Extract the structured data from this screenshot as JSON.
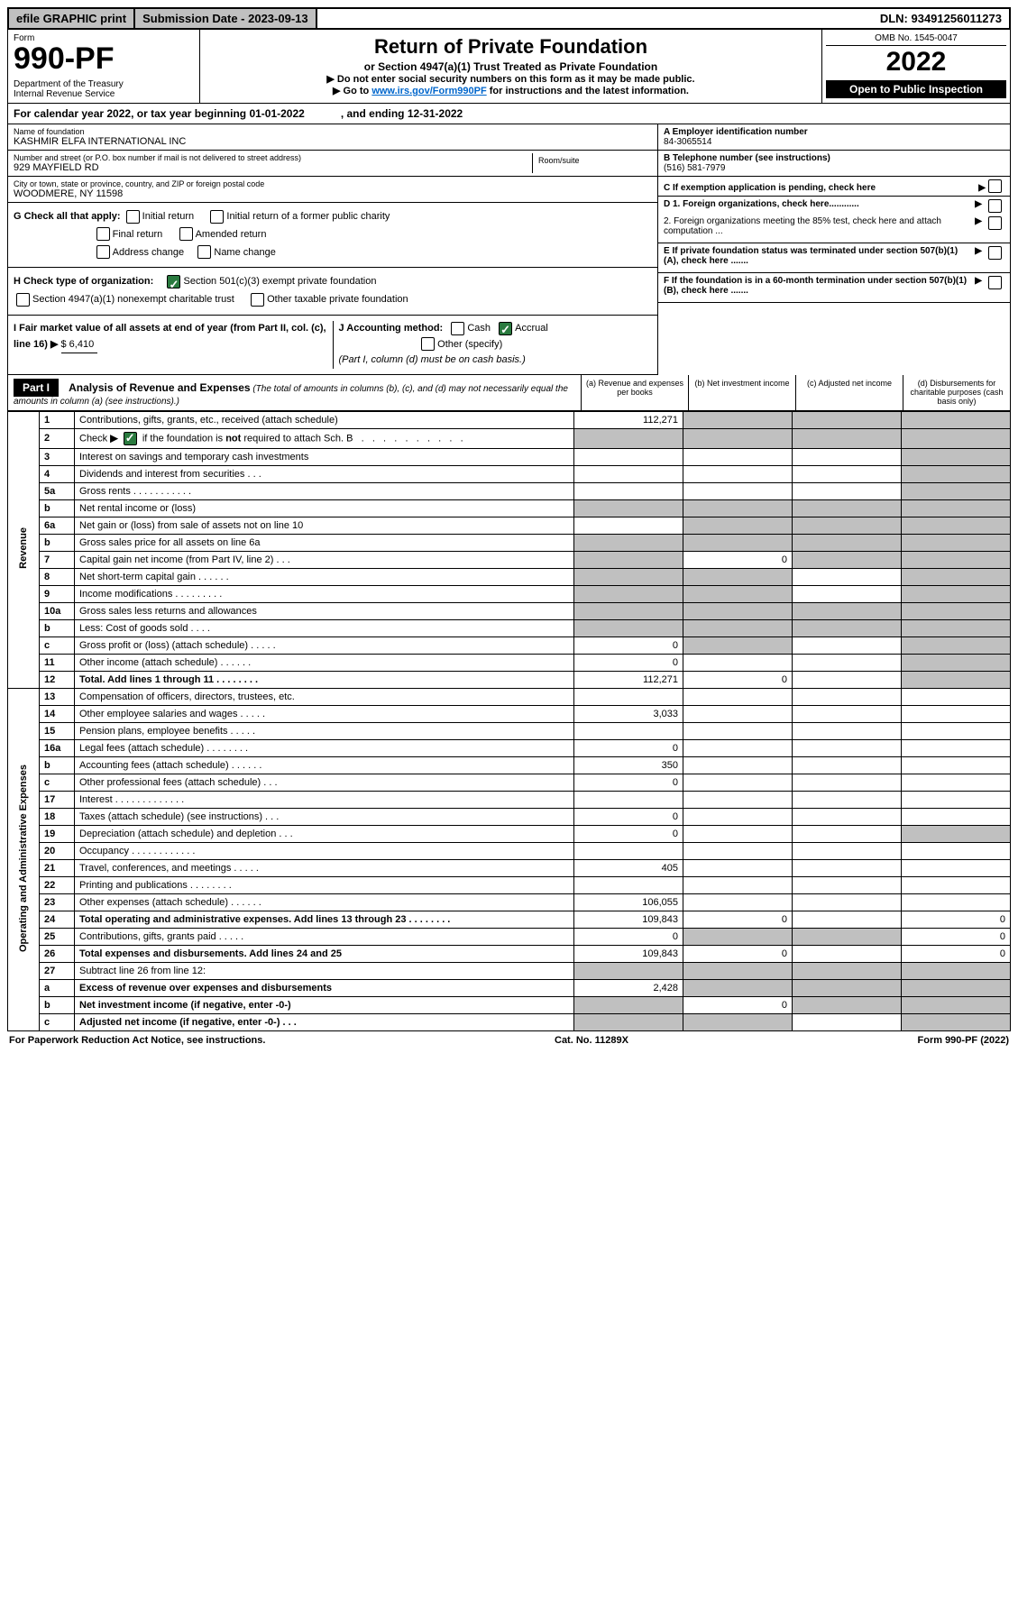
{
  "topbar": {
    "efile": "efile GRAPHIC print",
    "subdate_label": "Submission Date - ",
    "subdate": "2023-09-13",
    "dln_label": "DLN: ",
    "dln": "93491256011273"
  },
  "header": {
    "form_label": "Form",
    "form_num": "990-PF",
    "dept": "Department of the Treasury\nInternal Revenue Service",
    "title": "Return of Private Foundation",
    "subtitle": "or Section 4947(a)(1) Trust Treated as Private Foundation",
    "instr1": "▶ Do not enter social security numbers on this form as it may be made public.",
    "instr2_pre": "▶ Go to ",
    "instr2_link": "www.irs.gov/Form990PF",
    "instr2_post": " for instructions and the latest information.",
    "omb": "OMB No. 1545-0047",
    "year": "2022",
    "open": "Open to Public Inspection"
  },
  "calyear": "For calendar year 2022, or tax year beginning 01-01-2022            , and ending 12-31-2022",
  "org": {
    "name_label": "Name of foundation",
    "name": "KASHMIR ELFA INTERNATIONAL INC",
    "addr_label": "Number and street (or P.O. box number if mail is not delivered to street address)",
    "addr": "929 MAYFIELD RD",
    "room_label": "Room/suite",
    "city_label": "City or town, state or province, country, and ZIP or foreign postal code",
    "city": "WOODMERE, NY  11598",
    "ein_label": "A Employer identification number",
    "ein": "84-3065514",
    "tel_label": "B Telephone number (see instructions)",
    "tel": "(516) 581-7979",
    "c_label": "C If exemption application is pending, check here"
  },
  "checks": {
    "g_label": "G Check all that apply:",
    "g1": "Initial return",
    "g2": "Initial return of a former public charity",
    "g3": "Final return",
    "g4": "Amended return",
    "g5": "Address change",
    "g6": "Name change",
    "h_label": "H Check type of organization:",
    "h1": "Section 501(c)(3) exempt private foundation",
    "h2": "Section 4947(a)(1) nonexempt charitable trust",
    "h3": "Other taxable private foundation",
    "i_label": "I Fair market value of all assets at end of year (from Part II, col. (c), line 16) ",
    "i_arrow": "▶",
    "i_val": "$ 6,410",
    "j_label": "J Accounting method:",
    "j1": "Cash",
    "j2": "Accrual",
    "j3": "Other (specify)",
    "j_note": "(Part I, column (d) must be on cash basis.)",
    "d1": "D 1. Foreign organizations, check here............",
    "d2": "2. Foreign organizations meeting the 85% test, check here and attach computation ...",
    "e": "E  If private foundation status was terminated under section 507(b)(1)(A), check here .......",
    "f": "F  If the foundation is in a 60-month termination under section 507(b)(1)(B), check here ......."
  },
  "part1": {
    "label": "Part I",
    "title": "Analysis of Revenue and Expenses",
    "note": " (The total of amounts in columns (b), (c), and (d) may not necessarily equal the amounts in column (a) (see instructions).)",
    "col_a": "(a)   Revenue and expenses per books",
    "col_b": "(b)   Net investment income",
    "col_c": "(c)   Adjusted net income",
    "col_d": "(d)   Disbursements for charitable purposes (cash basis only)"
  },
  "sides": {
    "revenue": "Revenue",
    "expenses": "Operating and Administrative Expenses"
  },
  "rows": [
    {
      "n": "1",
      "d": "",
      "a": "112,271",
      "b": "",
      "c": "",
      "sb": true,
      "sc": true,
      "sd": true
    },
    {
      "n": "2",
      "d": "",
      "a": "",
      "b": "",
      "c": "",
      "sa": true,
      "sb": true,
      "sc": true,
      "sd": true,
      "checked": true
    },
    {
      "n": "3",
      "d": "",
      "a": "",
      "b": "",
      "c": "",
      "sd": true
    },
    {
      "n": "4",
      "d": "",
      "a": "",
      "b": "",
      "c": "",
      "sd": true
    },
    {
      "n": "5a",
      "d": "",
      "a": "",
      "b": "",
      "c": "",
      "sd": true
    },
    {
      "n": "b",
      "d": "",
      "a": "",
      "b": "",
      "c": "",
      "sa": true,
      "sb": true,
      "sc": true,
      "sd": true
    },
    {
      "n": "6a",
      "d": "",
      "a": "",
      "b": "",
      "c": "",
      "sb": true,
      "sc": true,
      "sd": true
    },
    {
      "n": "b",
      "d": "",
      "a": "",
      "b": "",
      "c": "",
      "sa": true,
      "sb": true,
      "sc": true,
      "sd": true
    },
    {
      "n": "7",
      "d": "",
      "a": "",
      "b": "0",
      "c": "",
      "sa": true,
      "sc": true,
      "sd": true
    },
    {
      "n": "8",
      "d": "",
      "a": "",
      "b": "",
      "c": "",
      "sa": true,
      "sb": true,
      "sd": true
    },
    {
      "n": "9",
      "d": "",
      "a": "",
      "b": "",
      "c": "",
      "sa": true,
      "sb": true,
      "sd": true
    },
    {
      "n": "10a",
      "d": "",
      "a": "",
      "b": "",
      "c": "",
      "sa": true,
      "sb": true,
      "sc": true,
      "sd": true
    },
    {
      "n": "b",
      "d": "",
      "a": "",
      "b": "",
      "c": "",
      "sa": true,
      "sb": true,
      "sc": true,
      "sd": true
    },
    {
      "n": "c",
      "d": "",
      "a": "0",
      "b": "",
      "c": "",
      "sb": true,
      "sd": true
    },
    {
      "n": "11",
      "d": "",
      "a": "0",
      "b": "",
      "c": "",
      "sd": true
    },
    {
      "n": "12",
      "d": "",
      "a": "112,271",
      "b": "0",
      "c": "",
      "bold": true,
      "sd": true
    }
  ],
  "exp_rows": [
    {
      "n": "13",
      "d": "",
      "a": "",
      "b": "",
      "c": ""
    },
    {
      "n": "14",
      "d": "",
      "a": "3,033",
      "b": "",
      "c": ""
    },
    {
      "n": "15",
      "d": "",
      "a": "",
      "b": "",
      "c": ""
    },
    {
      "n": "16a",
      "d": "",
      "a": "0",
      "b": "",
      "c": ""
    },
    {
      "n": "b",
      "d": "",
      "a": "350",
      "b": "",
      "c": ""
    },
    {
      "n": "c",
      "d": "",
      "a": "0",
      "b": "",
      "c": ""
    },
    {
      "n": "17",
      "d": "",
      "a": "",
      "b": "",
      "c": ""
    },
    {
      "n": "18",
      "d": "",
      "a": "0",
      "b": "",
      "c": ""
    },
    {
      "n": "19",
      "d": "",
      "a": "0",
      "b": "",
      "c": "",
      "sd": true
    },
    {
      "n": "20",
      "d": "",
      "a": "",
      "b": "",
      "c": ""
    },
    {
      "n": "21",
      "d": "",
      "a": "405",
      "b": "",
      "c": ""
    },
    {
      "n": "22",
      "d": "",
      "a": "",
      "b": "",
      "c": ""
    },
    {
      "n": "23",
      "d": "",
      "a": "106,055",
      "b": "",
      "c": ""
    },
    {
      "n": "24",
      "d": "0",
      "a": "109,843",
      "b": "0",
      "c": "",
      "bold": true
    },
    {
      "n": "25",
      "d": "0",
      "a": "0",
      "b": "",
      "c": "",
      "sb": true,
      "sc": true
    },
    {
      "n": "26",
      "d": "0",
      "a": "109,843",
      "b": "0",
      "c": "",
      "bold": true
    }
  ],
  "net_rows": [
    {
      "n": "27",
      "d": "",
      "a": "",
      "b": "",
      "c": "",
      "sa": true,
      "sb": true,
      "sc": true,
      "sd": true
    },
    {
      "n": "a",
      "d": "",
      "a": "2,428",
      "b": "",
      "c": "",
      "bold": true,
      "sb": true,
      "sc": true,
      "sd": true
    },
    {
      "n": "b",
      "d": "",
      "a": "",
      "b": "0",
      "c": "",
      "bold": true,
      "sa": true,
      "sc": true,
      "sd": true
    },
    {
      "n": "c",
      "d": "",
      "a": "",
      "b": "",
      "c": "",
      "bold": true,
      "sa": true,
      "sb": true,
      "sd": true
    }
  ],
  "footer": {
    "left": "For Paperwork Reduction Act Notice, see instructions.",
    "mid": "Cat. No. 11289X",
    "right": "Form 990-PF (2022)"
  }
}
